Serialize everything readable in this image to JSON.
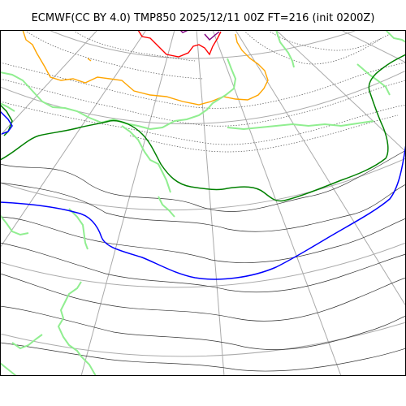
{
  "title": "ECMWF(CC BY 4.0) TMP850 2025/12/11 00Z FT=216 (init 0200Z)",
  "map": {
    "contour_colors": {
      "minus_24c": "#800080",
      "minus_18c": "#ff0000",
      "minus_12c": "#ffa500",
      "minus_6c": "#90ee90",
      "zero_c": "#008000",
      "plus_6c": "#0000ff",
      "dotted": "#555555",
      "thin": "#333333",
      "grid": "#aaaaaa",
      "frame": "#000000"
    }
  }
}
